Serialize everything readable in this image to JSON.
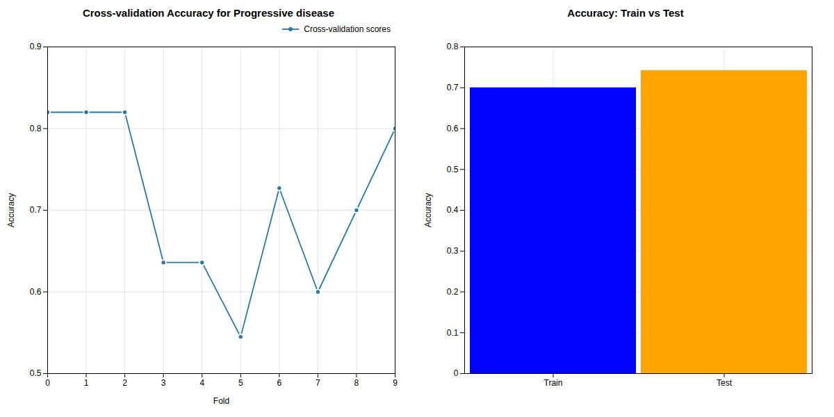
{
  "chart_data": [
    {
      "type": "line",
      "title": "Cross-validation Accuracy for Progressive disease",
      "xlabel": "Fold",
      "ylabel": "Accuracy",
      "x": [
        0,
        1,
        2,
        3,
        4,
        5,
        6,
        7,
        8,
        9
      ],
      "series": [
        {
          "name": "Cross-validation scores",
          "color": "#2878a8",
          "marker": "circle",
          "values": [
            0.82,
            0.82,
            0.82,
            0.636,
            0.636,
            0.545,
            0.727,
            0.6,
            0.7,
            0.8
          ]
        }
      ],
      "xlim": [
        0,
        9
      ],
      "xticks": [
        0,
        1,
        2,
        3,
        4,
        5,
        6,
        7,
        8,
        9
      ],
      "ylim": [
        0.5,
        0.9
      ],
      "yticks": [
        0.5,
        0.6,
        0.7,
        0.8,
        0.9
      ],
      "legend": "upper right",
      "grid": true
    },
    {
      "type": "bar",
      "title": "Accuracy: Train vs Test",
      "ylabel": "Accuracy",
      "categories": [
        "Train",
        "Test"
      ],
      "values": [
        0.7,
        0.742
      ],
      "colors": [
        "blue",
        "orange"
      ],
      "ylim": [
        0,
        0.8
      ],
      "yticks": [
        0,
        0.1,
        0.2,
        0.3,
        0.4,
        0.5,
        0.6,
        0.7,
        0.8
      ],
      "grid": true
    }
  ]
}
